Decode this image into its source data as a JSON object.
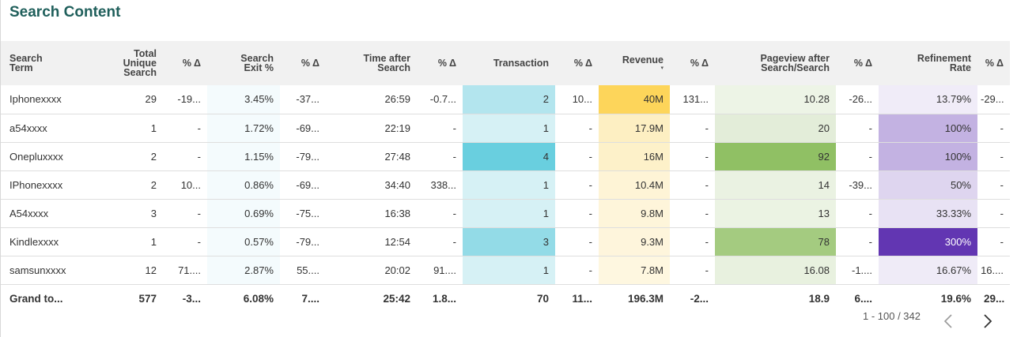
{
  "title": "Search Content",
  "columns": [
    {
      "label": "Search\nTerm"
    },
    {
      "label": "Total\nUnique\nSearch"
    },
    {
      "label": "% Δ"
    },
    {
      "label": "Search\nExit %"
    },
    {
      "label": "% Δ"
    },
    {
      "label": "Time after\nSearch"
    },
    {
      "label": "% Δ"
    },
    {
      "label": "Transaction"
    },
    {
      "label": "% Δ"
    },
    {
      "label": "Revenue",
      "sorted": true
    },
    {
      "label": "% Δ"
    },
    {
      "label": "Pageview after\nSearch/Search"
    },
    {
      "label": "% Δ"
    },
    {
      "label": "Refinement\nRate"
    },
    {
      "label": "% Δ"
    }
  ],
  "rows": [
    {
      "term": "Iphonexxxx",
      "unique": "29",
      "unique_d": "-19...",
      "exit": "3.45%",
      "exit_d": "-37...",
      "time": "26:59",
      "time_d": "-0.7...",
      "trans": "2",
      "trans_d": "10...",
      "rev": "40M",
      "rev_d": "131...",
      "pv": "10.28",
      "pv_d": "-26...",
      "ref": "13.79%",
      "ref_d": "-29...",
      "bg": {
        "exit": "#f4fbfd",
        "trans": "#b3e5ee",
        "rev": "#fdd55a",
        "pv": "#edf4e6",
        "ref": "#f0ecf8"
      }
    },
    {
      "term": "a54xxxx",
      "unique": "1",
      "unique_d": "-",
      "exit": "1.72%",
      "exit_d": "-69...",
      "time": "22:19",
      "time_d": "-",
      "trans": "1",
      "trans_d": "-",
      "rev": "17.9M",
      "rev_d": "-",
      "pv": "20",
      "pv_d": "-",
      "ref": "100%",
      "ref_d": "-",
      "bg": {
        "exit": "#f4fbfd",
        "trans": "#d6f1f5",
        "rev": "#fdefc2",
        "pv": "#e3edd9",
        "ref": "#c3b2e2"
      }
    },
    {
      "term": "Onepluxxxx",
      "unique": "2",
      "unique_d": "-",
      "exit": "1.15%",
      "exit_d": "-79...",
      "time": "27:48",
      "time_d": "-",
      "trans": "4",
      "trans_d": "-",
      "rev": "16M",
      "rev_d": "-",
      "pv": "92",
      "pv_d": "-",
      "ref": "100%",
      "ref_d": "-",
      "bg": {
        "exit": "#f4fbfd",
        "trans": "#69cfdf",
        "rev": "#fdf1c9",
        "pv": "#90c064",
        "ref": "#c3b2e2"
      }
    },
    {
      "term": "IPhonexxxx",
      "unique": "2",
      "unique_d": "10...",
      "exit": "0.86%",
      "exit_d": "-69...",
      "time": "34:40",
      "time_d": "338...",
      "trans": "1",
      "trans_d": "-",
      "rev": "10.4M",
      "rev_d": "-",
      "pv": "14",
      "pv_d": "-39...",
      "ref": "50%",
      "ref_d": "-",
      "bg": {
        "exit": "#f4fbfd",
        "trans": "#d6f1f5",
        "rev": "#fef4d6",
        "pv": "#eaf2e2",
        "ref": "#ded5ef"
      }
    },
    {
      "term": "A54xxxx",
      "unique": "3",
      "unique_d": "-",
      "exit": "0.69%",
      "exit_d": "-75...",
      "time": "16:38",
      "time_d": "-",
      "trans": "1",
      "trans_d": "-",
      "rev": "9.8M",
      "rev_d": "-",
      "pv": "13",
      "pv_d": "-",
      "ref": "33.33%",
      "ref_d": "-",
      "bg": {
        "exit": "#f4fbfd",
        "trans": "#d6f1f5",
        "rev": "#fef5da",
        "pv": "#ebf3e3",
        "ref": "#e8e2f4"
      }
    },
    {
      "term": "Kindlexxxx",
      "unique": "1",
      "unique_d": "-",
      "exit": "0.57%",
      "exit_d": "-79...",
      "time": "12:54",
      "time_d": "-",
      "trans": "3",
      "trans_d": "-",
      "rev": "9.3M",
      "rev_d": "-",
      "pv": "78",
      "pv_d": "-",
      "ref": "300%",
      "ref_d": "-",
      "bg": {
        "exit": "#f4fbfd",
        "trans": "#93dbe7",
        "rev": "#fef5dc",
        "pv": "#a4cb80",
        "ref": "#6236b2"
      },
      "fg": {
        "ref": "#ffffff"
      }
    },
    {
      "term": "samsunxxxx",
      "unique": "12",
      "unique_d": "71....",
      "exit": "2.87%",
      "exit_d": "55....",
      "time": "20:02",
      "time_d": "91....",
      "trans": "1",
      "trans_d": "-",
      "rev": "7.8M",
      "rev_d": "-",
      "pv": "16.08",
      "pv_d": "-1....",
      "ref": "16.67%",
      "ref_d": "16....",
      "bg": {
        "exit": "#f4fbfd",
        "trans": "#d6f1f5",
        "rev": "#fef7e0",
        "pv": "#e8f1df",
        "ref": "#efebf7"
      }
    }
  ],
  "total": {
    "term": "Grand to...",
    "unique": "577",
    "unique_d": "-3...",
    "exit": "6.08%",
    "exit_d": "7....",
    "time": "25:42",
    "time_d": "1.8...",
    "trans": "70",
    "trans_d": "11...",
    "rev": "196.3M",
    "rev_d": "-2...",
    "pv": "18.9",
    "pv_d": "6....",
    "ref": "19.6%",
    "ref_d": "29..."
  },
  "pager": {
    "text": "1 - 100 / 342"
  },
  "icons": {
    "prev": "chevron-left-icon",
    "next": "chevron-right-icon"
  },
  "colors": {
    "title": "#1f5f5b",
    "header_bg": "#f1f1f1"
  }
}
